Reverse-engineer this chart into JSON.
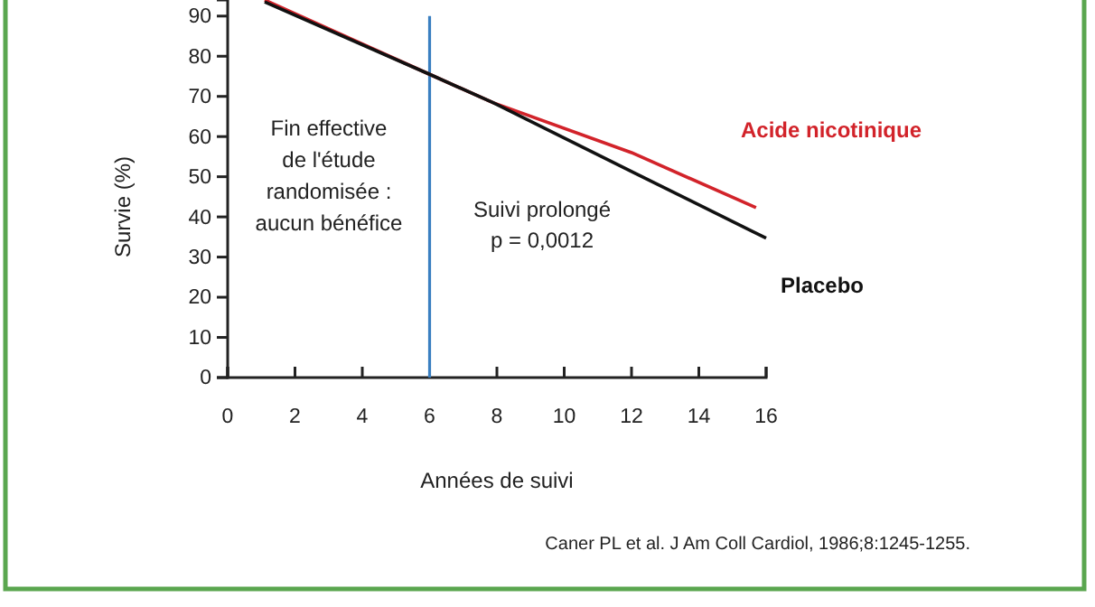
{
  "chart_data": {
    "type": "line",
    "xlabel": "Années de suivi",
    "ylabel": "Survie (%)",
    "xlim": [
      0,
      16
    ],
    "xticks": [
      0,
      2,
      4,
      6,
      8,
      10,
      12,
      14,
      16
    ],
    "ylim": [
      0,
      94
    ],
    "yticks": [
      0,
      10,
      20,
      30,
      40,
      50,
      60,
      70,
      80,
      90
    ],
    "series": [
      {
        "name": "Acide nicotinique",
        "color": "#d2232a",
        "x": [
          1.1,
          6,
          7.9,
          12,
          15.7
        ],
        "values": [
          94,
          75.5,
          68.4,
          56,
          42.3
        ]
      },
      {
        "name": "Placebo",
        "color": "#111111",
        "x": [
          1.1,
          6,
          7.9,
          12,
          16
        ],
        "values": [
          93.5,
          75.5,
          68.4,
          51.3,
          34.7
        ]
      }
    ],
    "ref_lines": [
      {
        "axis": "x",
        "value": 6,
        "color": "#3a7fc1"
      }
    ],
    "annotations": [
      "Fin effective\nde l'étude\nrandomisée :\naucun bénéfice",
      "Suivi prolongé\np = 0,0012",
      "Caner PL et al. J Am Coll Cardiol, 1986;8:1245-1255."
    ],
    "legend": false,
    "grid": false
  }
}
